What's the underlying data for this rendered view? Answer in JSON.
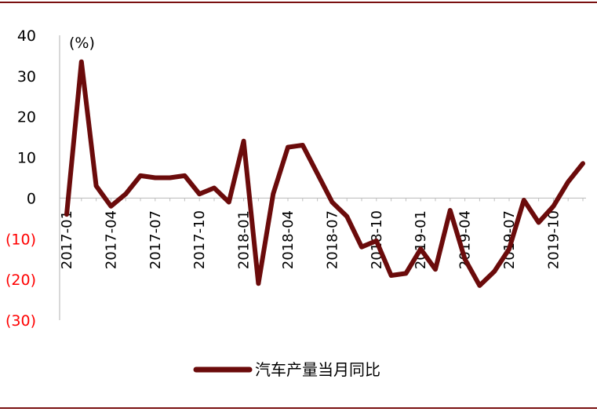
{
  "chart_data": {
    "type": "line",
    "unit_label": "(%)",
    "yticks": [
      {
        "value": 40,
        "label": "40",
        "color": "#000000"
      },
      {
        "value": 30,
        "label": "30",
        "color": "#000000"
      },
      {
        "value": 20,
        "label": "20",
        "color": "#000000"
      },
      {
        "value": 10,
        "label": "10",
        "color": "#000000"
      },
      {
        "value": 0,
        "label": "0",
        "color": "#000000"
      },
      {
        "value": -10,
        "label": "(10)",
        "color": "#ff0000"
      },
      {
        "value": -20,
        "label": "(20)",
        "color": "#ff0000"
      },
      {
        "value": -30,
        "label": "(30)",
        "color": "#ff0000"
      }
    ],
    "ylim": [
      -30,
      40
    ],
    "xtick_labels": [
      {
        "index": 0,
        "label": "2017-01"
      },
      {
        "index": 3,
        "label": "2017-04"
      },
      {
        "index": 6,
        "label": "2017-07"
      },
      {
        "index": 9,
        "label": "2017-10"
      },
      {
        "index": 12,
        "label": "2018-01"
      },
      {
        "index": 15,
        "label": "2018-04"
      },
      {
        "index": 18,
        "label": "2018-07"
      },
      {
        "index": 21,
        "label": "2018-10"
      },
      {
        "index": 24,
        "label": "2019-01"
      },
      {
        "index": 27,
        "label": "2019-04"
      },
      {
        "index": 30,
        "label": "2019-07"
      },
      {
        "index": 33,
        "label": "2019-10"
      }
    ],
    "series": [
      {
        "name": "汽车产量当月同比",
        "color": "#6b0b0b",
        "x": [
          "2017-01",
          "2017-02",
          "2017-03",
          "2017-04",
          "2017-05",
          "2017-06",
          "2017-07",
          "2017-08",
          "2017-09",
          "2017-10",
          "2017-11",
          "2017-12",
          "2018-01",
          "2018-02",
          "2018-03",
          "2018-04",
          "2018-05",
          "2018-06",
          "2018-07",
          "2018-08",
          "2018-09",
          "2018-10",
          "2018-11",
          "2018-12",
          "2019-01",
          "2019-02",
          "2019-03",
          "2019-04",
          "2019-05",
          "2019-06",
          "2019-07",
          "2019-08",
          "2019-09",
          "2019-10",
          "2019-11",
          "2019-12"
        ],
        "values": [
          -4,
          33.5,
          3,
          -2,
          1,
          5.5,
          5,
          5,
          5.5,
          1,
          2.5,
          -1,
          14,
          -21,
          1,
          12.5,
          13,
          6,
          -1,
          -4.5,
          -12,
          -10.5,
          -19,
          -18.5,
          -12.5,
          -17.5,
          -3,
          -15,
          -21.5,
          -18,
          -12.5,
          -0.5,
          -6,
          -2,
          4,
          8.5
        ]
      }
    ]
  }
}
